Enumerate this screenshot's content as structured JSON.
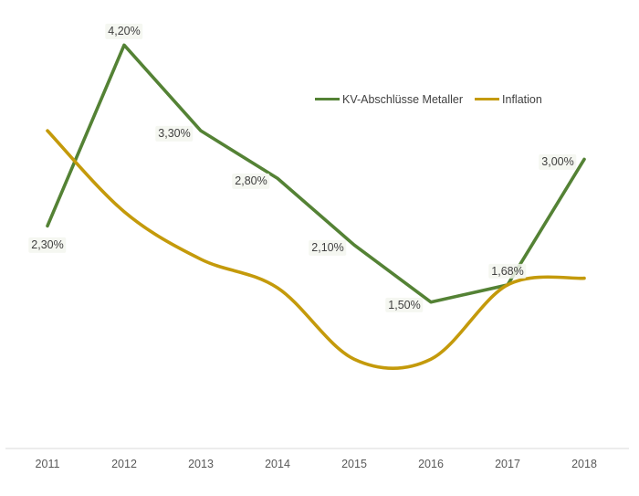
{
  "chart_data": {
    "type": "line",
    "categories": [
      "2011",
      "2012",
      "2013",
      "2014",
      "2015",
      "2016",
      "2017",
      "2018"
    ],
    "series": [
      {
        "name": "KV-Abschlüsse Metaller",
        "color": "#548235",
        "smooth": false,
        "values": [
          2.3,
          4.2,
          3.3,
          2.8,
          2.1,
          1.5,
          1.68,
          3.0
        ],
        "data_labels": [
          "2,30%",
          "4,20%",
          "3,30%",
          "2,80%",
          "2,10%",
          "1,50%",
          "1,68%",
          "3,00%"
        ],
        "label_placements": [
          "below",
          "above",
          "left",
          "left",
          "left",
          "left",
          "above",
          "left"
        ]
      },
      {
        "name": "Inflation",
        "color": "#C49A0B",
        "smooth": true,
        "values": [
          3.3,
          2.45,
          1.95,
          1.65,
          0.9,
          0.9,
          1.68,
          1.75
        ],
        "data_labels": null,
        "label_placements": null
      }
    ],
    "legend": {
      "position": "top-right",
      "entries": [
        "KV-Abschlüsse Metaller",
        "Inflation"
      ]
    },
    "axes": {
      "x_ticks": [
        "2011",
        "2012",
        "2013",
        "2014",
        "2015",
        "2016",
        "2017",
        "2018"
      ],
      "y_axis_visible": false,
      "y_range_pct": [
        0,
        4.5
      ],
      "grid": false
    },
    "colors": {
      "kv_line": "#548235",
      "inflation_line": "#C49A0B",
      "axis_line": "#D9D9D9",
      "tick_label": "#595959",
      "data_label": "#404040",
      "background": "#FFFFFF"
    }
  }
}
